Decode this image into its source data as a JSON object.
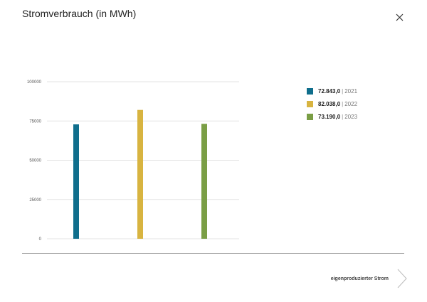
{
  "header": {
    "title": "Stromverbrauch (in MWh)",
    "close_icon": "close-icon"
  },
  "chart_data": {
    "type": "bar",
    "title": "Stromverbrauch (in MWh)",
    "categories": [
      "2021",
      "2022",
      "2023"
    ],
    "values": [
      72843,
      82038,
      73190
    ],
    "colors": [
      "#0f6e8c",
      "#d8b440",
      "#7a9e45"
    ],
    "ylim": [
      0,
      100000
    ],
    "yticks": [
      "0",
      "25000",
      "50000",
      "75000",
      "100000"
    ],
    "grid": true,
    "legend_position": "right",
    "legend": [
      {
        "value": "72.843,0",
        "year": "2021",
        "color": "#0f6e8c"
      },
      {
        "value": "82.038,0",
        "year": "2022",
        "color": "#d8b440"
      },
      {
        "value": "73.190,0",
        "year": "2023",
        "color": "#7a9e45"
      }
    ]
  },
  "footer": {
    "next_label": "eigenproduzierter Strom",
    "next_icon": "chevron-right-icon"
  }
}
